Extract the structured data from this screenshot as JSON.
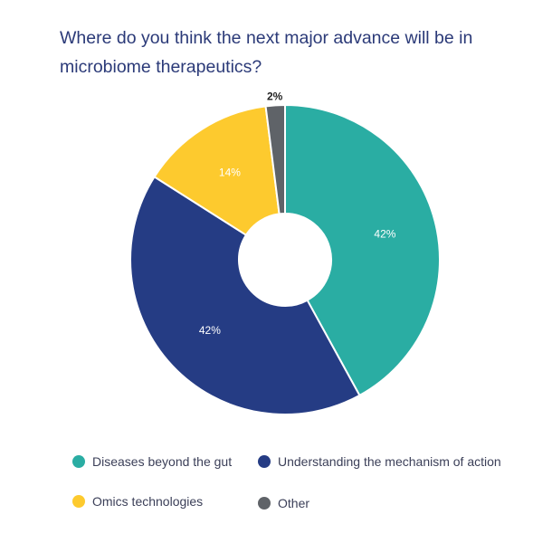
{
  "chart_data": {
    "type": "pie",
    "variant": "donut",
    "title": "Where do you think the next major advance will be in microbiome therapeutics?",
    "legend_position": "bottom",
    "slices": [
      {
        "label": "Diseases beyond the gut",
        "value": 42,
        "display": "42%",
        "color": "#2aada3"
      },
      {
        "label": "Understanding the mechanism of action",
        "value": 42,
        "display": "42%",
        "color": "#253c84"
      },
      {
        "label": "Omics technologies",
        "value": 14,
        "display": "14%",
        "color": "#fdca2e"
      },
      {
        "label": "Other",
        "value": 2,
        "display": "2%",
        "color": "#5f6368"
      }
    ]
  }
}
